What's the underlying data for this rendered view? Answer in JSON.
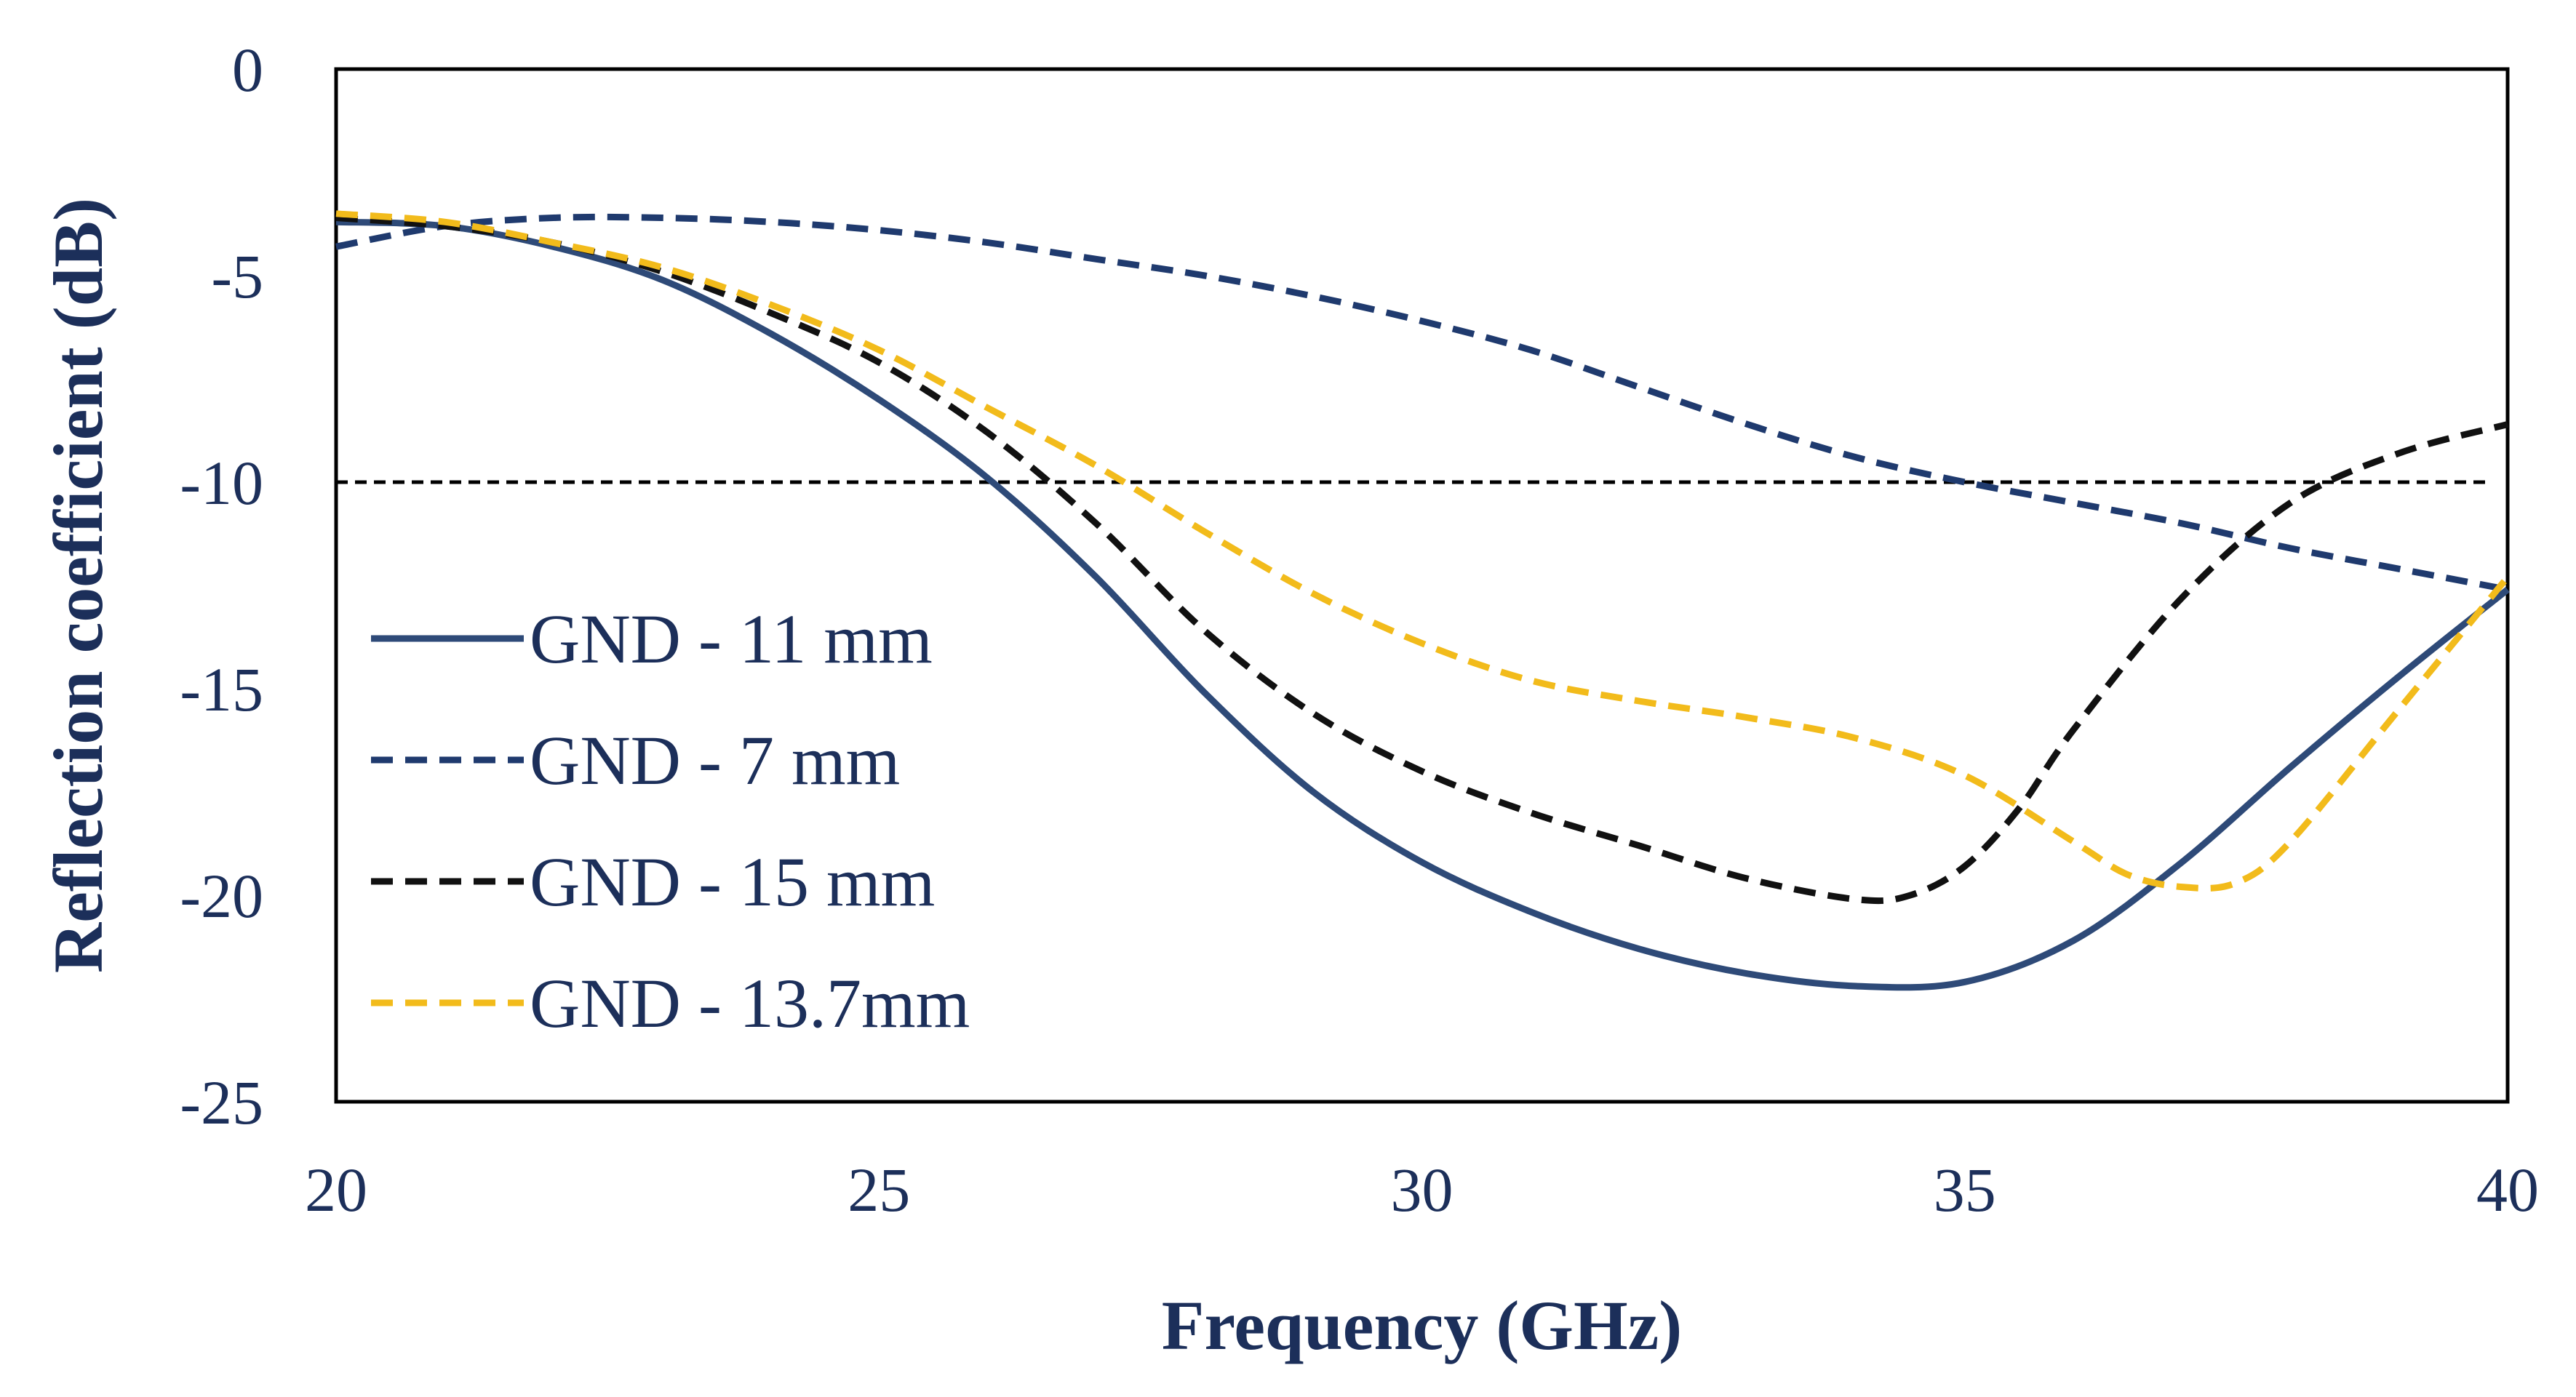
{
  "chart_data": {
    "type": "line",
    "title": "",
    "xlabel": "Frequency (GHz)",
    "ylabel": "Reflection coefficient (dB)",
    "xlim": [
      20,
      40
    ],
    "ylim": [
      -25,
      0
    ],
    "xticks": [
      20,
      25,
      30,
      35,
      40
    ],
    "yticks": [
      0,
      -5,
      -10,
      -15,
      -20,
      -25
    ],
    "xtick_labels": [
      "20",
      "25",
      "30",
      "35",
      "40"
    ],
    "ytick_labels": [
      "0",
      "-5",
      "-10",
      "-15",
      "-20",
      "-25"
    ],
    "legend_position": "lower-left",
    "reference_line": {
      "y": -10,
      "color": "#000000",
      "dash": "dashed"
    },
    "series": [
      {
        "name": "GND - 11 mm",
        "color": "#2e4a78",
        "dash": "solid",
        "x": [
          20,
          21,
          22,
          23,
          24,
          25,
          26,
          27,
          28,
          29,
          30,
          31,
          32,
          33,
          34,
          35,
          36,
          37,
          38,
          39,
          40
        ],
        "y": [
          -3.7,
          -3.8,
          -4.3,
          -5.1,
          -6.4,
          -8.0,
          -9.9,
          -12.3,
          -15.1,
          -17.5,
          -19.2,
          -20.4,
          -21.3,
          -21.9,
          -22.2,
          -22.1,
          -21.1,
          -19.2,
          -16.9,
          -14.7,
          -12.6
        ]
      },
      {
        "name": "GND - 7 mm",
        "color": "#1f3a6e",
        "dash": "dashed",
        "x": [
          20,
          21,
          22,
          23,
          24,
          25,
          26,
          27,
          28,
          29,
          30,
          31,
          32,
          33,
          34,
          35,
          36,
          37,
          38,
          39,
          40
        ],
        "y": [
          -4.3,
          -3.8,
          -3.6,
          -3.6,
          -3.7,
          -3.9,
          -4.2,
          -4.6,
          -5.0,
          -5.5,
          -6.1,
          -6.8,
          -7.7,
          -8.6,
          -9.4,
          -10.0,
          -10.5,
          -11.0,
          -11.6,
          -12.1,
          -12.6
        ]
      },
      {
        "name": "GND - 15 mm",
        "color": "#111111",
        "dash": "dashed",
        "x": [
          20,
          21,
          22,
          23,
          24,
          25,
          26,
          27,
          28,
          29,
          30,
          31,
          32,
          33,
          34,
          34.5,
          35,
          35.5,
          36,
          37,
          38,
          39,
          40
        ],
        "y": [
          -3.6,
          -3.8,
          -4.2,
          -4.9,
          -5.9,
          -7.1,
          -8.8,
          -11.0,
          -13.6,
          -15.6,
          -17.0,
          -18.0,
          -18.8,
          -19.6,
          -20.1,
          -20.0,
          -19.3,
          -17.9,
          -16.0,
          -12.8,
          -10.5,
          -9.3,
          -8.6
        ]
      },
      {
        "name": "GND - 13.7mm",
        "color": "#f2bb1b",
        "dash": "dashed",
        "x": [
          20,
          21,
          22,
          23,
          24,
          25,
          26,
          27,
          28,
          29,
          30,
          31,
          32,
          33,
          34,
          35,
          36,
          36.5,
          37,
          37.5,
          38,
          39,
          40
        ],
        "y": [
          -3.5,
          -3.7,
          -4.2,
          -4.8,
          -5.7,
          -6.8,
          -8.2,
          -9.6,
          -11.2,
          -12.7,
          -13.9,
          -14.8,
          -15.3,
          -15.7,
          -16.2,
          -17.1,
          -18.7,
          -19.5,
          -19.8,
          -19.7,
          -18.7,
          -15.5,
          -12.3
        ]
      }
    ]
  }
}
